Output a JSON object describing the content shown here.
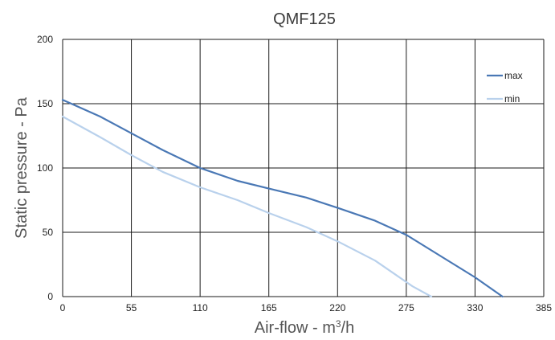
{
  "chart_data": {
    "type": "line",
    "title": "QMF125",
    "xlabel": "Air-flow - m",
    "xlabel_sup": "3",
    "xlabel_suffix": "/h",
    "ylabel": "Static pressure - Pa",
    "xlim": [
      0,
      385
    ],
    "ylim": [
      0,
      200
    ],
    "x_ticks": [
      "0",
      "55",
      "110",
      "165",
      "220",
      "275",
      "330",
      "385"
    ],
    "y_ticks": [
      "0",
      "50",
      "100",
      "150",
      "200"
    ],
    "grid": true,
    "legend_position": "top-right",
    "series": [
      {
        "name": "max",
        "color": "#4a78b5",
        "x": [
          0,
          30,
          55,
          80,
          110,
          140,
          165,
          195,
          220,
          250,
          275,
          305,
          330,
          352
        ],
        "y": [
          153,
          140,
          127,
          114,
          100,
          90,
          84,
          77,
          69,
          59,
          48,
          30,
          15,
          0
        ]
      },
      {
        "name": "min",
        "color": "#b9d1ec",
        "x": [
          0,
          30,
          55,
          80,
          110,
          140,
          165,
          195,
          220,
          250,
          265,
          280,
          295
        ],
        "y": [
          140,
          124,
          110,
          97,
          85,
          75,
          65,
          54,
          43,
          28,
          18,
          8,
          0
        ]
      }
    ]
  }
}
